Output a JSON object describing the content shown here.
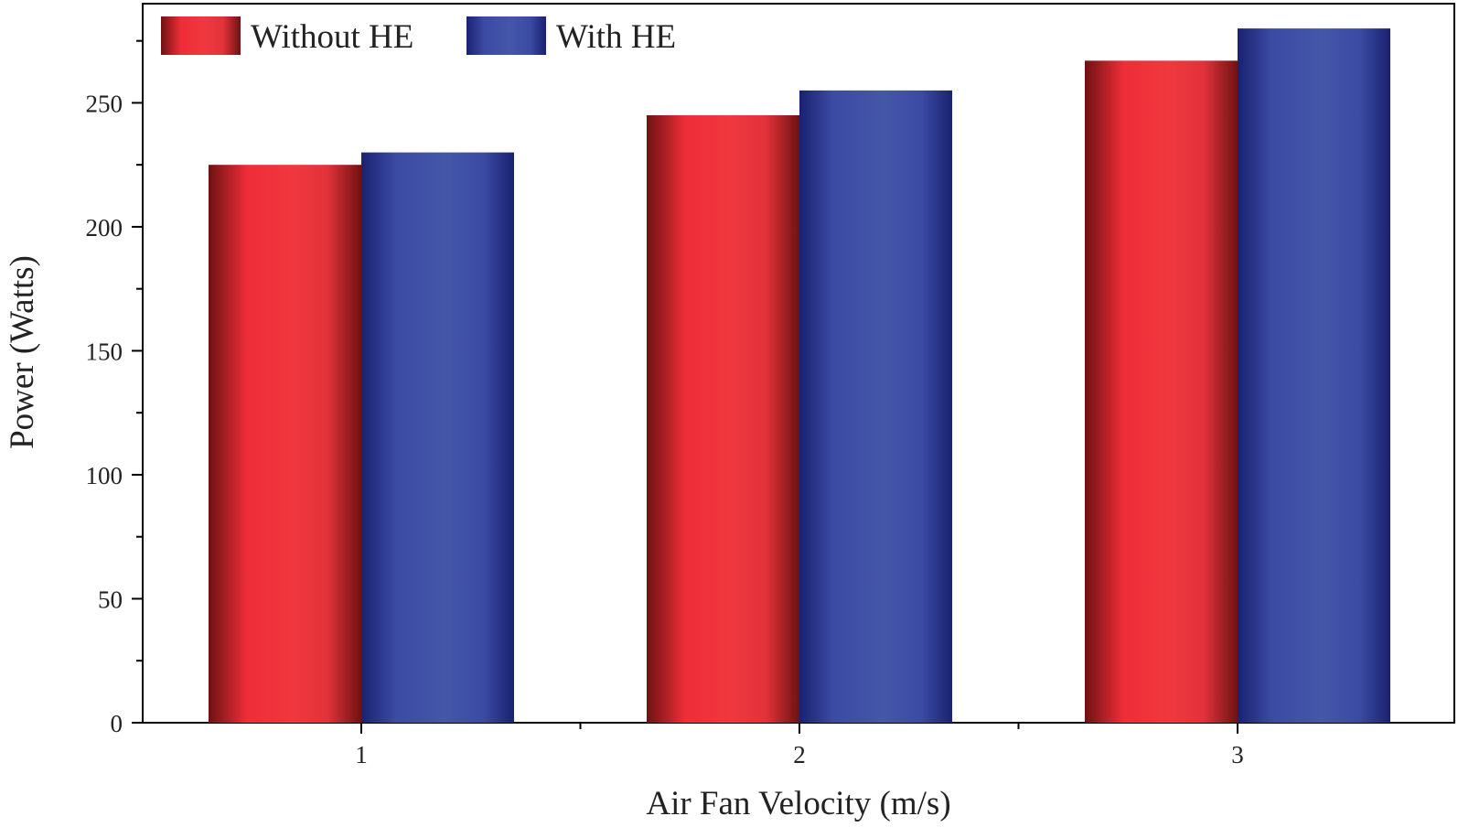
{
  "chart_data": {
    "type": "bar",
    "categories": [
      "1",
      "2",
      "3"
    ],
    "series": [
      {
        "name": "Without HE",
        "values": [
          225,
          245,
          267
        ],
        "color": "#e8303a"
      },
      {
        "name": "With HE",
        "values": [
          230,
          255,
          280
        ],
        "color": "#3e4da3"
      }
    ],
    "xlabel": "Air Fan Velocity (m/s)",
    "ylabel": "Power (Watts)",
    "ylim": [
      0,
      290
    ],
    "yticks": [
      "0",
      "50",
      "100",
      "150",
      "200",
      "250"
    ],
    "ytick_values": [
      0,
      50,
      100,
      150,
      200,
      250
    ],
    "legend_position": "top-left",
    "grid": false
  }
}
